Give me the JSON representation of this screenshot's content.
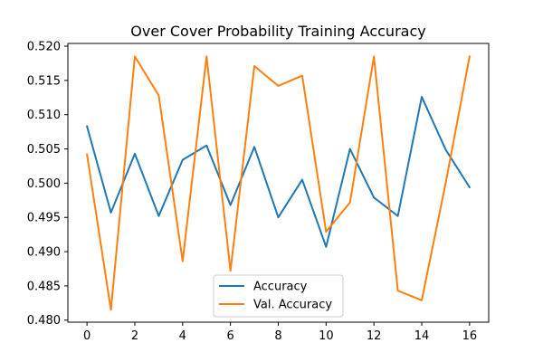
{
  "chart_data": {
    "type": "line",
    "title": "Over Cover Probability Training Accuracy",
    "xlabel": "",
    "ylabel": "",
    "x": [
      0,
      1,
      2,
      3,
      4,
      5,
      6,
      7,
      8,
      9,
      10,
      11,
      12,
      13,
      14,
      15,
      16
    ],
    "xlim": [
      -0.8,
      16.8
    ],
    "ylim": [
      0.4797,
      0.5204
    ],
    "xticks": [
      0,
      2,
      4,
      6,
      8,
      10,
      12,
      14,
      16
    ],
    "xtick_labels": [
      "0",
      "2",
      "4",
      "6",
      "8",
      "10",
      "12",
      "14",
      "16"
    ],
    "yticks": [
      0.48,
      0.485,
      0.49,
      0.495,
      0.5,
      0.505,
      0.51,
      0.515,
      0.52
    ],
    "ytick_labels": [
      "0.480",
      "0.485",
      "0.490",
      "0.495",
      "0.500",
      "0.505",
      "0.510",
      "0.515",
      "0.520"
    ],
    "grid": false,
    "legend_position": "bottom-center",
    "series": [
      {
        "name": "Accuracy",
        "color": "#1f77b4",
        "values": [
          0.5083,
          0.4957,
          0.5043,
          0.4952,
          0.5034,
          0.5055,
          0.4968,
          0.5053,
          0.495,
          0.5005,
          0.4907,
          0.505,
          0.4979,
          0.4952,
          0.5126,
          0.5049,
          0.4994
        ]
      },
      {
        "name": "Val. Accuracy",
        "color": "#ff7f0e",
        "values": [
          0.5042,
          0.4815,
          0.5185,
          0.5128,
          0.4886,
          0.5185,
          0.4872,
          0.5171,
          0.5142,
          0.5157,
          0.4929,
          0.4972,
          0.5185,
          0.4843,
          0.4829,
          0.5,
          0.5185
        ]
      }
    ]
  }
}
